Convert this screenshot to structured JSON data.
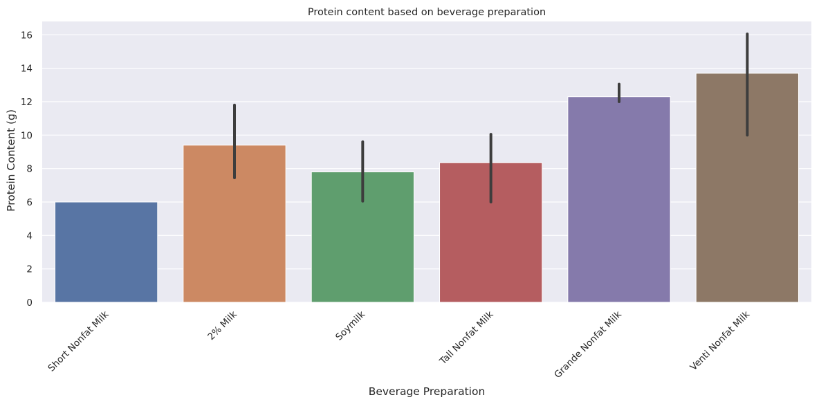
{
  "chart_data": {
    "type": "bar",
    "title": "Protein content based on beverage preparation",
    "xlabel": "Beverage Preparation",
    "ylabel": "Protein Content (g)",
    "categories": [
      "Short Nonfat Milk",
      "2% Milk",
      "Soymilk",
      "Tall Nonfat Milk",
      "Grande Nonfat Milk",
      "Venti Nonfat Milk"
    ],
    "values": [
      6.0,
      9.4,
      7.8,
      8.35,
      12.3,
      13.7
    ],
    "error_low": [
      6.0,
      7.45,
      6.05,
      6.0,
      12.0,
      10.0
    ],
    "error_high": [
      6.0,
      11.8,
      9.6,
      10.05,
      13.05,
      16.05
    ],
    "colors": [
      "#5875a4",
      "#cc8963",
      "#5f9e6e",
      "#b55d60",
      "#857aab",
      "#8d7866"
    ],
    "error_color": "#3d3d3d",
    "ylim": [
      0,
      16.8
    ],
    "yticks": [
      "0",
      "2",
      "4",
      "6",
      "8",
      "10",
      "12",
      "14",
      "16"
    ],
    "ytick_values": [
      0,
      2,
      4,
      6,
      8,
      10,
      12,
      14,
      16
    ],
    "grid": true,
    "background": "#eaeaf2"
  }
}
